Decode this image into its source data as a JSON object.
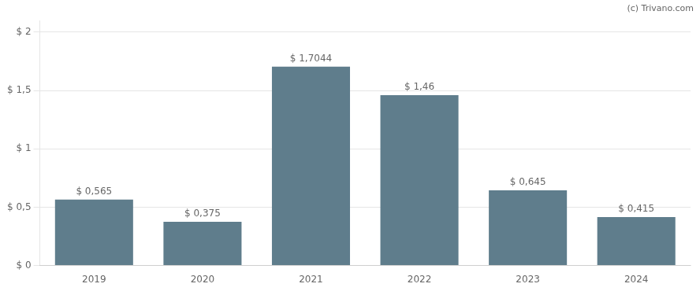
{
  "chart_data": {
    "type": "bar",
    "categories": [
      "2019",
      "2020",
      "2021",
      "2022",
      "2023",
      "2024"
    ],
    "values": [
      0.565,
      0.375,
      1.7044,
      1.46,
      0.645,
      0.415
    ],
    "value_labels": [
      "$ 0,565",
      "$ 0,375",
      "$ 1,7044",
      "$ 1,46",
      "$ 0,645",
      "$ 0,415"
    ],
    "data_labels": true,
    "color": "#5f7d8c",
    "ylim": [
      0,
      2.1
    ],
    "yticks": [
      {
        "value": 0,
        "label": "$ 0"
      },
      {
        "value": 0.5,
        "label": "$ 0,5"
      },
      {
        "value": 1.0,
        "label": "$ 1"
      },
      {
        "value": 1.5,
        "label": "$ 1,5"
      },
      {
        "value": 2.0,
        "label": "$ 2"
      }
    ],
    "grid": true,
    "annotations": [
      "(c) Trivano.com"
    ]
  }
}
